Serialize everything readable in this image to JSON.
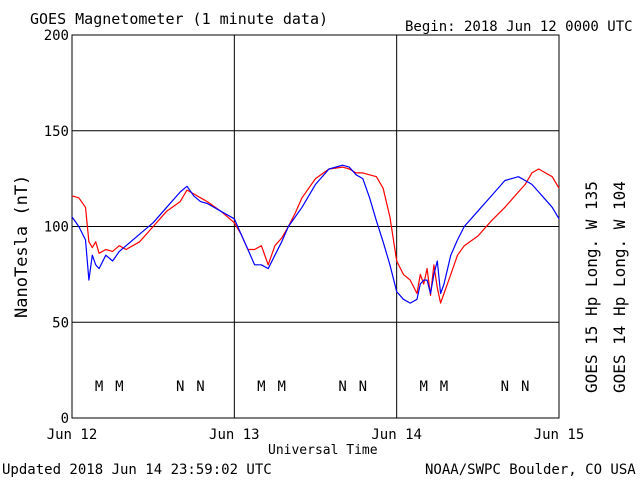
{
  "title": "GOES Magnetometer (1 minute data)",
  "begin_label": "Begin:  2018 Jun 12 0000 UTC",
  "updated_label": "Updated 2018 Jun 14 23:59:02 UTC",
  "source_label": "NOAA/SWPC Boulder, CO USA",
  "colors": {
    "goes15": "#ff0000",
    "goes14": "#0000ff",
    "grid": "#000000"
  },
  "chart_data": {
    "type": "line",
    "title": "GOES Magnetometer (1 minute data)",
    "xlabel": "Universal Time",
    "ylabel": "NanoTesla (nT)",
    "xlim": [
      0,
      72
    ],
    "ylim": [
      0,
      200
    ],
    "x_unit": "hours since 2018 Jun 12 0000 UTC",
    "x_ticks": [
      {
        "x": 0,
        "label": "Jun 12"
      },
      {
        "x": 24,
        "label": "Jun 13"
      },
      {
        "x": 48,
        "label": "Jun 14"
      },
      {
        "x": 72,
        "label": "Jun 15"
      }
    ],
    "y_ticks": [
      0,
      50,
      100,
      150,
      200
    ],
    "grid": true,
    "legend_position": "right-vertical",
    "series": [
      {
        "name": "GOES 15 Hp  Long. W 135",
        "color": "#ff0000",
        "x": [
          0,
          1,
          2,
          2.5,
          3,
          3.5,
          4,
          5,
          6,
          7,
          8,
          10,
          12,
          14,
          16,
          17,
          18,
          19,
          20,
          22,
          24,
          25,
          26,
          27,
          28,
          29,
          30,
          31,
          32,
          33,
          34,
          36,
          38,
          40,
          41,
          42,
          43,
          44,
          45,
          46,
          47,
          48,
          49,
          50,
          51,
          51.5,
          52,
          52.5,
          53,
          53.5,
          54,
          54.5,
          55,
          56,
          57,
          58,
          60,
          62,
          64,
          66,
          67,
          68,
          69,
          70,
          71,
          72
        ],
        "y": [
          116,
          115,
          110,
          92,
          89,
          92,
          86,
          88,
          87,
          90,
          88,
          92,
          100,
          108,
          113,
          119,
          117,
          115,
          113,
          108,
          102,
          96,
          88,
          88,
          90,
          80,
          90,
          94,
          100,
          107,
          115,
          125,
          130,
          131,
          130,
          128,
          128,
          127,
          126,
          120,
          105,
          82,
          75,
          72,
          65,
          75,
          70,
          78,
          64,
          80,
          68,
          60,
          65,
          75,
          85,
          90,
          95,
          103,
          110,
          118,
          122,
          128,
          130,
          128,
          126,
          120
        ]
      },
      {
        "name": "GOES 14 Hp  Long. W 104",
        "color": "#0000ff",
        "x": [
          0,
          1,
          2,
          2.5,
          3,
          3.5,
          4,
          5,
          6,
          7,
          8,
          10,
          12,
          14,
          16,
          17,
          18,
          19,
          20,
          22,
          24,
          25,
          26,
          27,
          28,
          29,
          30,
          31,
          32,
          33,
          34,
          36,
          38,
          40,
          41,
          42,
          43,
          44,
          45,
          46,
          47,
          48,
          49,
          50,
          51,
          51.5,
          52,
          52.5,
          53,
          53.5,
          54,
          54.5,
          55,
          56,
          57,
          58,
          60,
          62,
          64,
          66,
          67,
          68,
          69,
          70,
          71,
          72
        ],
        "y": [
          105,
          100,
          93,
          72,
          85,
          80,
          78,
          85,
          82,
          87,
          90,
          96,
          102,
          110,
          118,
          121,
          116,
          113,
          112,
          108,
          104,
          96,
          88,
          80,
          80,
          78,
          85,
          92,
          100,
          105,
          110,
          122,
          130,
          132,
          131,
          127,
          125,
          115,
          103,
          92,
          80,
          66,
          62,
          60,
          62,
          70,
          72,
          72,
          65,
          75,
          82,
          65,
          70,
          85,
          93,
          100,
          108,
          116,
          124,
          126,
          124,
          122,
          118,
          114,
          110,
          104
        ]
      }
    ],
    "annotations": [
      {
        "x": 4,
        "label": "M",
        "color": "#0000ff"
      },
      {
        "x": 7,
        "label": "M",
        "color": "#ff0000"
      },
      {
        "x": 16,
        "label": "N",
        "color": "#0000ff"
      },
      {
        "x": 19,
        "label": "N",
        "color": "#ff0000"
      },
      {
        "x": 28,
        "label": "M",
        "color": "#0000ff"
      },
      {
        "x": 31,
        "label": "M",
        "color": "#ff0000"
      },
      {
        "x": 40,
        "label": "N",
        "color": "#0000ff"
      },
      {
        "x": 43,
        "label": "N",
        "color": "#ff0000"
      },
      {
        "x": 52,
        "label": "M",
        "color": "#0000ff"
      },
      {
        "x": 55,
        "label": "M",
        "color": "#ff0000"
      },
      {
        "x": 64,
        "label": "N",
        "color": "#0000ff"
      },
      {
        "x": 67,
        "label": "N",
        "color": "#ff0000"
      }
    ]
  }
}
